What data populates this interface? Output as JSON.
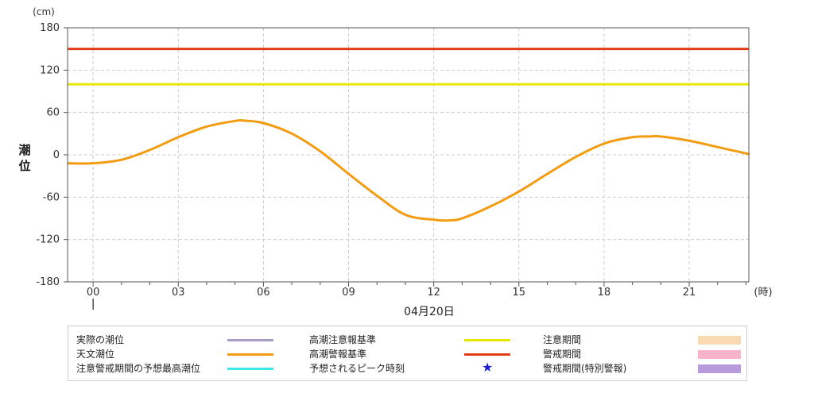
{
  "chart_data": {
    "type": "line",
    "unit_label": "(cm)",
    "ylabel": "潮位",
    "xlabel": "(時)",
    "date_label": "04月20日",
    "ylim": [
      -180,
      180
    ],
    "yticks": [
      180,
      120,
      60,
      0,
      -60,
      -120,
      -180
    ],
    "xlim": [
      -0.9,
      23.1
    ],
    "xticks": [
      {
        "value": 0,
        "label": "00"
      },
      {
        "value": 3,
        "label": "03"
      },
      {
        "value": 6,
        "label": "06"
      },
      {
        "value": 9,
        "label": "09"
      },
      {
        "value": 12,
        "label": "12"
      },
      {
        "value": 15,
        "label": "15"
      },
      {
        "value": 18,
        "label": "18"
      },
      {
        "value": 21,
        "label": "21"
      }
    ],
    "grid": true,
    "series": [
      {
        "name": "天文潮位",
        "color": "#f39c12",
        "x": [
          -0.9,
          0,
          1,
          2,
          3,
          4,
          5,
          5.3,
          6,
          7,
          8,
          9,
          10,
          11,
          12,
          12.5,
          13,
          14,
          15,
          16,
          17,
          18,
          19,
          19.6,
          20,
          21,
          22,
          23,
          23.1
        ],
        "y": [
          -12,
          -12,
          -7,
          7,
          25,
          40,
          48,
          48.5,
          45,
          30,
          5,
          -27,
          -58,
          -85,
          -92,
          -93,
          -90,
          -73,
          -52,
          -27,
          -3,
          16,
          25,
          26,
          26,
          20,
          11,
          2,
          1
        ]
      },
      {
        "name": "高潮注意報基準",
        "color": "#e6e600",
        "constant": 100
      },
      {
        "name": "高潮警報基準",
        "color": "#e13c14",
        "constant": 150
      }
    ]
  },
  "legend": {
    "items": [
      {
        "label": "実際の潮位",
        "kind": "line",
        "color": "#a89cc8"
      },
      {
        "label": "天文潮位",
        "kind": "line",
        "color": "#f39c12"
      },
      {
        "label": "注意警戒期間の予想最高潮位",
        "kind": "line",
        "color": "#3de8e8"
      },
      {
        "label": "高潮注意報基準",
        "kind": "line",
        "color": "#e6e600"
      },
      {
        "label": "高潮警報基準",
        "kind": "line",
        "color": "#e13c14"
      },
      {
        "label": "予想されるピーク時刻",
        "kind": "star",
        "color": "#1f1fd0"
      },
      {
        "label": "注意期間",
        "kind": "rect",
        "color": "#fad8b0"
      },
      {
        "label": "警戒期間",
        "kind": "rect",
        "color": "#f7b3c9"
      },
      {
        "label": "警戒期間(特別警報)",
        "kind": "rect",
        "color": "#b79bdc"
      }
    ]
  }
}
